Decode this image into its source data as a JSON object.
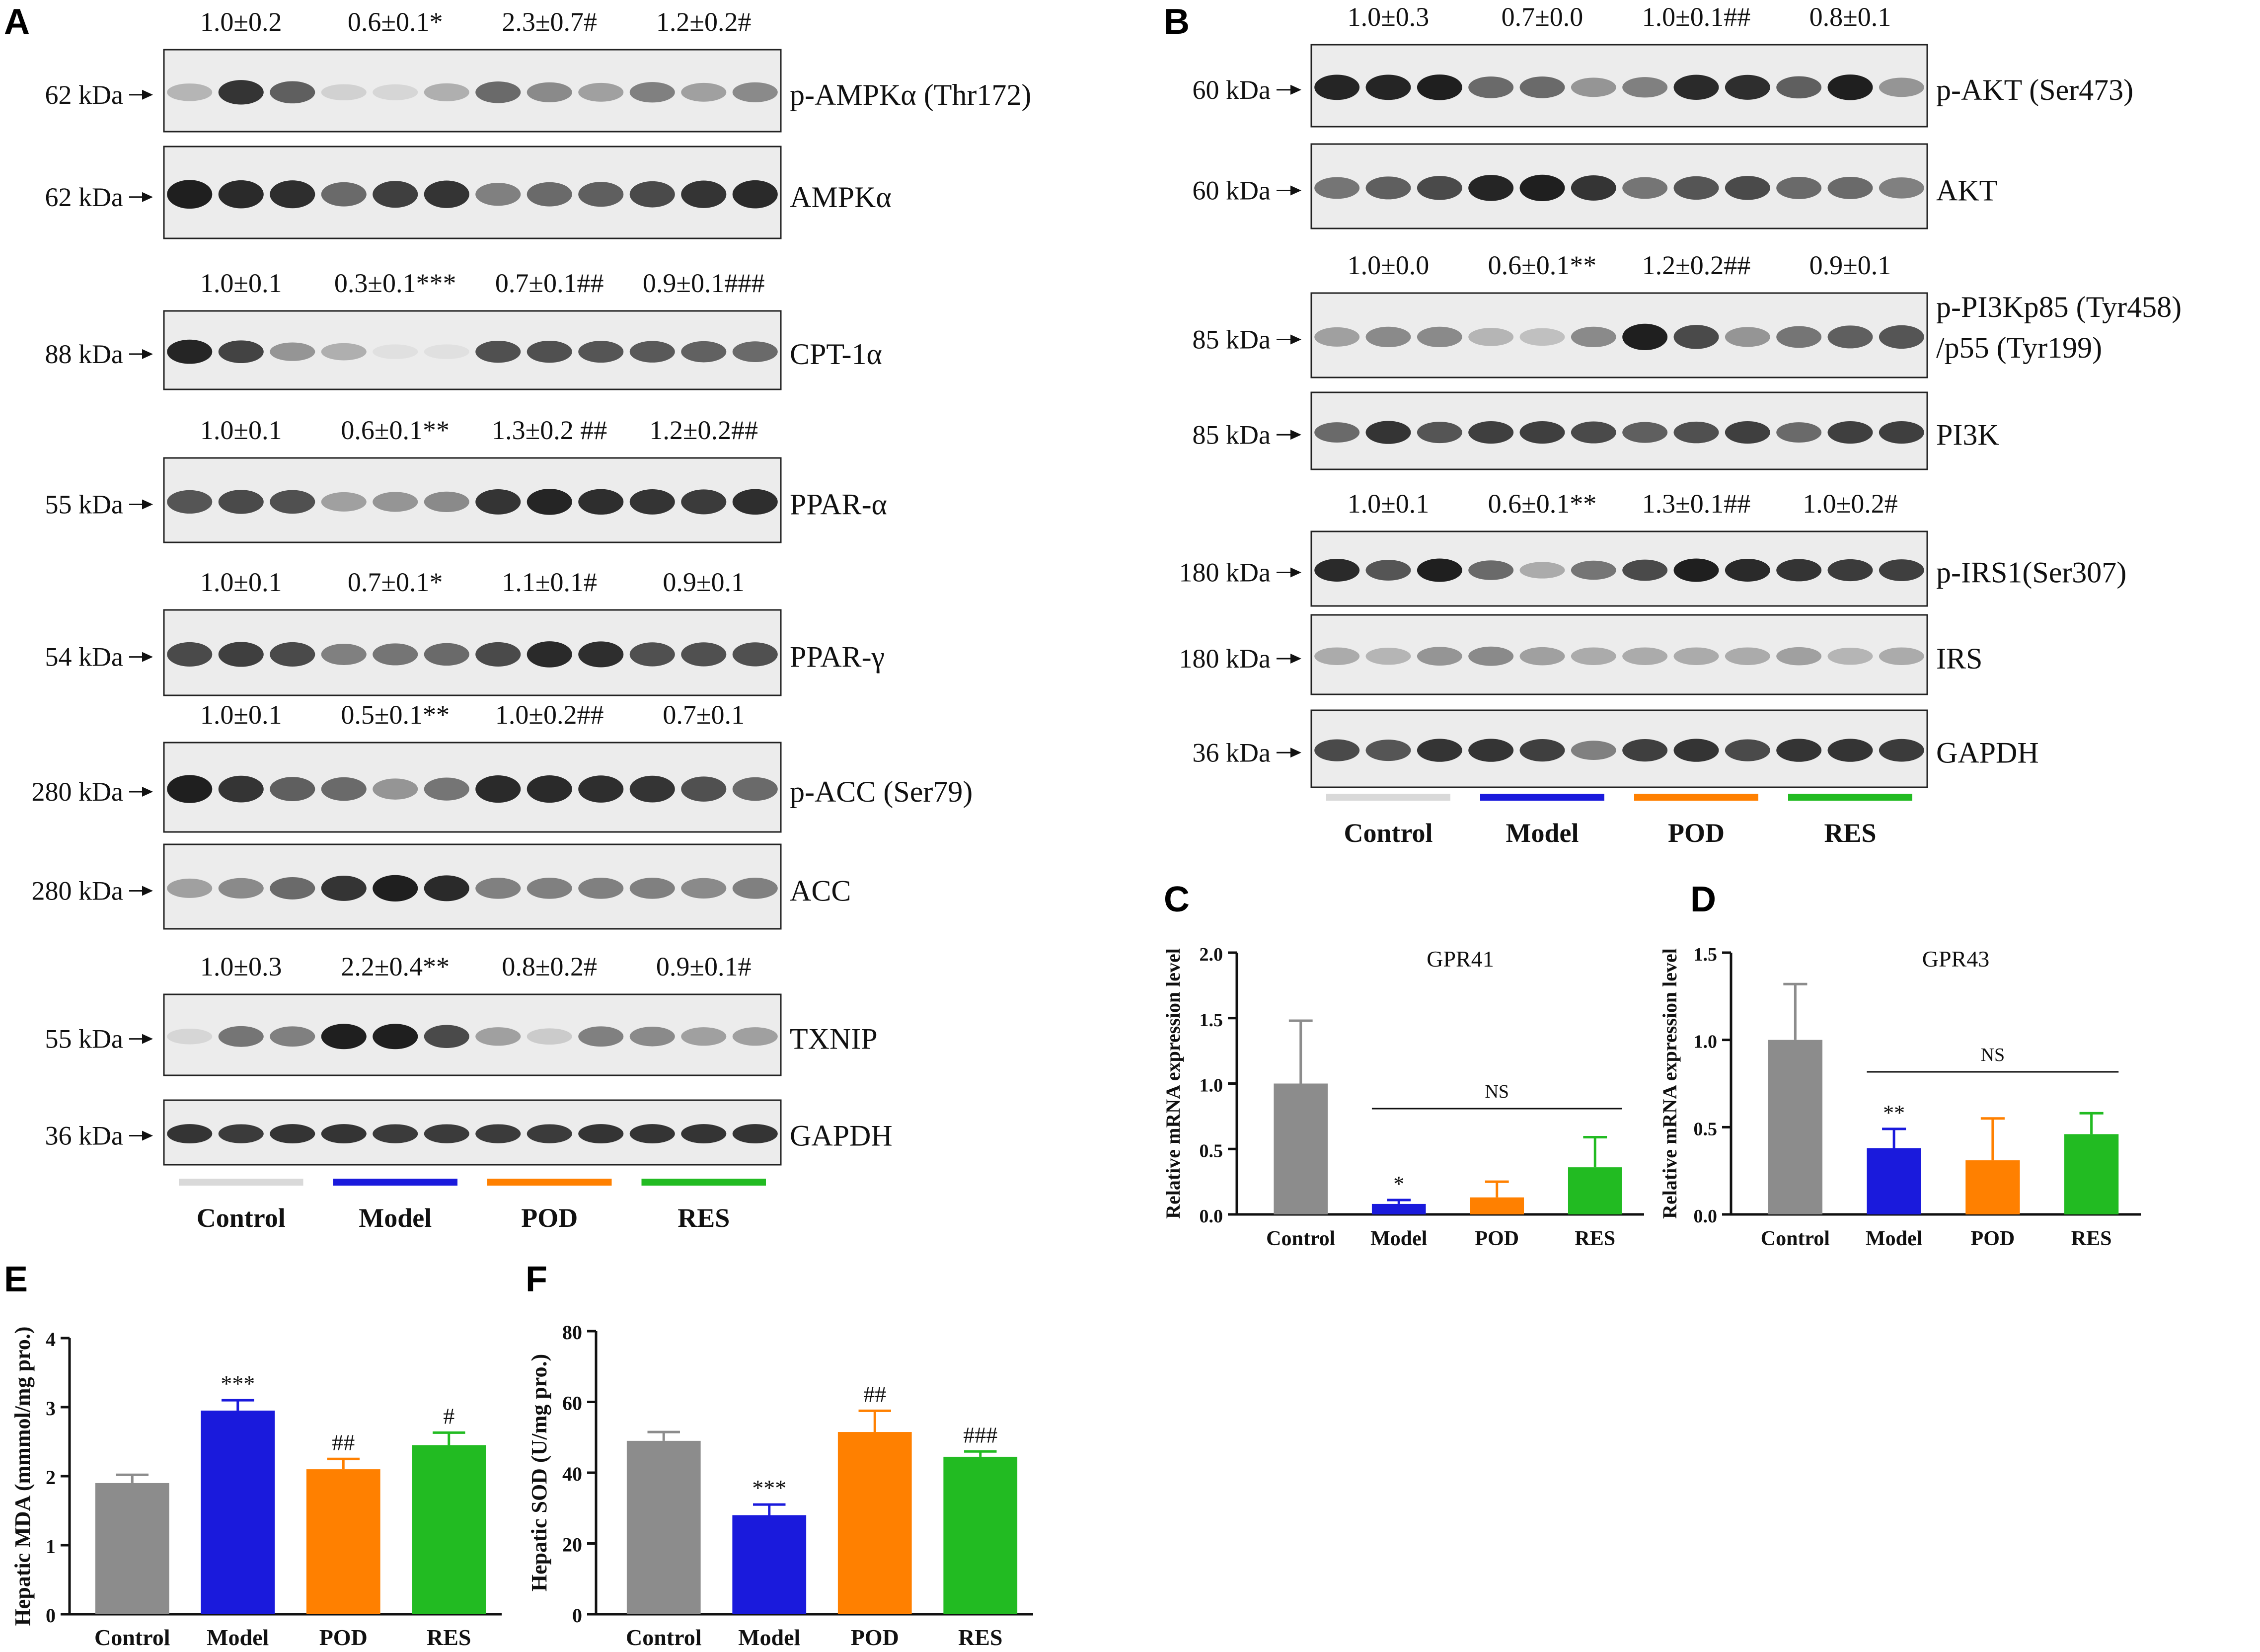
{
  "panel_labels": {
    "A": "A",
    "B": "B",
    "C": "C",
    "D": "D",
    "E": "E",
    "F": "F"
  },
  "blot_group_labels": [
    "Control",
    "Model",
    "POD",
    "RES"
  ],
  "colors": {
    "Control": "#8c8c8c",
    "Model": "#1a1adc",
    "POD": "#ff8000",
    "RES": "#22bb22"
  },
  "panel_A": [
    {
      "kda": "62 kDa",
      "protein": "p-AMPKα (Thr172)",
      "values": [
        "1.0±0.2",
        "0.6±0.1*",
        "2.3±0.7#",
        "1.2±0.2#"
      ],
      "intensity": [
        0.25,
        0.85,
        0.65,
        0.12,
        0.1,
        0.28,
        0.6,
        0.45,
        0.35,
        0.5,
        0.35,
        0.45
      ]
    },
    {
      "kda": "62 kDa",
      "protein": "AMPKα",
      "values": null,
      "intensity": [
        0.95,
        0.9,
        0.88,
        0.6,
        0.8,
        0.85,
        0.5,
        0.6,
        0.65,
        0.75,
        0.85,
        0.9
      ]
    },
    {
      "kda": "88 kDa",
      "protein": "CPT-1α",
      "values": [
        "1.0±0.1",
        "0.3±0.1***",
        "0.7±0.1##",
        "0.9±0.1###"
      ],
      "intensity": [
        0.92,
        0.78,
        0.4,
        0.28,
        0.05,
        0.05,
        0.72,
        0.72,
        0.7,
        0.68,
        0.64,
        0.6
      ]
    },
    {
      "kda": "55 kDa",
      "protein": "PPAR-α",
      "values": [
        "1.0±0.1",
        "0.6±0.1**",
        "1.3±0.2 ##",
        "1.2±0.2##"
      ],
      "intensity": [
        0.7,
        0.75,
        0.72,
        0.35,
        0.4,
        0.45,
        0.85,
        0.92,
        0.88,
        0.85,
        0.82,
        0.88
      ]
    },
    {
      "kda": "54 kDa",
      "protein": "PPAR-γ",
      "values": [
        "1.0±0.1",
        "0.7±0.1*",
        "1.1±0.1#",
        "0.9±0.1"
      ],
      "intensity": [
        0.75,
        0.8,
        0.75,
        0.5,
        0.55,
        0.6,
        0.75,
        0.9,
        0.88,
        0.72,
        0.72,
        0.72
      ]
    },
    {
      "kda": "280 kDa",
      "protein": "p-ACC (Ser79)",
      "values": [
        "1.0±0.1",
        "0.5±0.1**",
        "1.0±0.2##",
        "0.7±0.1"
      ],
      "intensity": [
        0.95,
        0.85,
        0.65,
        0.6,
        0.4,
        0.55,
        0.9,
        0.9,
        0.88,
        0.85,
        0.72,
        0.6
      ]
    },
    {
      "kda": "280 kDa",
      "protein": "ACC",
      "values": null,
      "intensity": [
        0.35,
        0.45,
        0.6,
        0.85,
        0.95,
        0.9,
        0.5,
        0.5,
        0.5,
        0.5,
        0.45,
        0.5
      ]
    },
    {
      "kda": "55 kDa",
      "protein": "TXNIP",
      "values": [
        "1.0±0.3",
        "2.2±0.4**",
        "0.8±0.2#",
        "0.9±0.1#"
      ],
      "intensity": [
        0.1,
        0.55,
        0.5,
        0.95,
        0.95,
        0.75,
        0.35,
        0.15,
        0.5,
        0.45,
        0.35,
        0.35
      ]
    },
    {
      "kda": "36 kDa",
      "protein": "GAPDH",
      "values": null,
      "intensity": [
        0.85,
        0.82,
        0.85,
        0.85,
        0.82,
        0.82,
        0.82,
        0.82,
        0.85,
        0.85,
        0.85,
        0.85
      ]
    }
  ],
  "panel_B": [
    {
      "kda": "60 kDa",
      "protein": "p-AKT (Ser473)",
      "values": [
        "1.0±0.3",
        "0.7±0.0",
        "1.0±0.1##",
        "0.8±0.1"
      ],
      "intensity": [
        0.92,
        0.92,
        0.95,
        0.6,
        0.6,
        0.4,
        0.5,
        0.9,
        0.88,
        0.65,
        0.95,
        0.4
      ]
    },
    {
      "kda": "60 kDa",
      "protein": "AKT",
      "values": null,
      "intensity": [
        0.55,
        0.65,
        0.75,
        0.92,
        0.95,
        0.85,
        0.55,
        0.7,
        0.75,
        0.6,
        0.6,
        0.5
      ]
    },
    {
      "kda": "85 kDa",
      "protein": "p-PI3Kp85 (Tyr458)",
      "protein2": "/p55 (Tyr199)",
      "values": [
        "1.0±0.0",
        "0.6±0.1**",
        "1.2±0.2##",
        "0.9±0.1"
      ],
      "intensity": [
        0.35,
        0.45,
        0.45,
        0.25,
        0.2,
        0.45,
        0.95,
        0.75,
        0.4,
        0.55,
        0.65,
        0.7
      ]
    },
    {
      "kda": "85 kDa",
      "protein": "PI3K",
      "values": null,
      "intensity": [
        0.6,
        0.85,
        0.7,
        0.8,
        0.8,
        0.75,
        0.65,
        0.72,
        0.8,
        0.6,
        0.8,
        0.8
      ]
    },
    {
      "kda": "180 kDa",
      "protein": "p-IRS1(Ser307)",
      "values": [
        "1.0±0.1",
        "0.6±0.1**",
        "1.3±0.1##",
        "1.0±0.2#"
      ],
      "intensity": [
        0.9,
        0.7,
        0.95,
        0.6,
        0.3,
        0.55,
        0.75,
        0.95,
        0.9,
        0.85,
        0.82,
        0.8
      ]
    },
    {
      "kda": "180 kDa",
      "protein": "IRS",
      "values": null,
      "intensity": [
        0.3,
        0.25,
        0.4,
        0.45,
        0.35,
        0.3,
        0.3,
        0.3,
        0.3,
        0.35,
        0.25,
        0.3
      ]
    },
    {
      "kda": "36 kDa",
      "protein": "GAPDH",
      "values": null,
      "intensity": [
        0.75,
        0.7,
        0.85,
        0.85,
        0.8,
        0.5,
        0.8,
        0.85,
        0.75,
        0.85,
        0.85,
        0.82
      ]
    }
  ],
  "chart_data": [
    {
      "id": "C",
      "type": "bar",
      "title": "GPR41",
      "categories": [
        "Control",
        "Model",
        "POD",
        "RES"
      ],
      "values": [
        1.0,
        0.08,
        0.13,
        0.36
      ],
      "errors": [
        0.48,
        0.03,
        0.12,
        0.23
      ],
      "annotations": [
        "",
        "*",
        "",
        ""
      ],
      "bracket_label": "NS",
      "ylabel": "Relative mRNA expression level",
      "ylim": [
        0,
        2.0
      ],
      "yticks": [
        "0.0",
        "0.5",
        "1.0",
        "1.5",
        "2.0"
      ]
    },
    {
      "id": "D",
      "type": "bar",
      "title": "GPR43",
      "categories": [
        "Control",
        "Model",
        "POD",
        "RES"
      ],
      "values": [
        1.0,
        0.38,
        0.31,
        0.46
      ],
      "errors": [
        0.32,
        0.11,
        0.24,
        0.12
      ],
      "annotations": [
        "",
        "**",
        "",
        ""
      ],
      "bracket_label": "NS",
      "ylabel": "Relative mRNA expression level",
      "ylim": [
        0,
        1.5
      ],
      "yticks": [
        "0.0",
        "0.5",
        "1.0",
        "1.5"
      ]
    },
    {
      "id": "E",
      "type": "bar",
      "title": "",
      "categories": [
        "Control",
        "Model",
        "POD",
        "RES"
      ],
      "values": [
        1.9,
        2.95,
        2.1,
        2.45
      ],
      "errors": [
        0.12,
        0.15,
        0.15,
        0.18
      ],
      "annotations": [
        "",
        "***",
        "##",
        "#"
      ],
      "ylabel": "Hepatic MDA (mmmol/mg pro.)",
      "ylim": [
        0,
        4
      ],
      "yticks": [
        "0",
        "1",
        "2",
        "3",
        "4"
      ]
    },
    {
      "id": "F",
      "type": "bar",
      "title": "",
      "categories": [
        "Control",
        "Model",
        "POD",
        "RES"
      ],
      "values": [
        49,
        28,
        51.5,
        44.5
      ],
      "errors": [
        2.5,
        3,
        6,
        1.5
      ],
      "annotations": [
        "",
        "***",
        "##",
        "###"
      ],
      "ylabel": "Hepatic SOD (U/mg pro.)",
      "ylim": [
        0,
        80
      ],
      "yticks": [
        "0",
        "20",
        "40",
        "60",
        "80"
      ]
    }
  ]
}
